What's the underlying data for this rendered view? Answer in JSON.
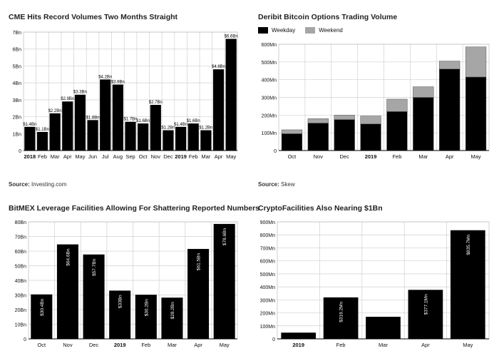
{
  "panels": [
    {
      "title": "CME Hits Record Volumes Two Months Straight",
      "source_label": "Source:",
      "source_value": "Investing.com"
    },
    {
      "title": "Deribit Bitcoin Options Trading Volume",
      "source_label": "Source:",
      "source_value": "Skew",
      "legend": [
        "Weekday",
        "Weekend"
      ]
    },
    {
      "title": "BitMEX Leverage Facilities Allowing For Shattering Reported Numbers"
    },
    {
      "title": "CryptoFacilities Also Nearing $1Bn"
    }
  ],
  "colors": {
    "bar": "#000000",
    "weekend": "#a6a6a6",
    "grid": "#d0d0d0",
    "axis": "#000000"
  },
  "chart_data": [
    {
      "type": "bar",
      "title": "CME Hits Record Volumes Two Months Straight",
      "categories": [
        "2018",
        "Feb",
        "Mar",
        "Apr",
        "May",
        "Jun",
        "Jul",
        "Aug",
        "Sep",
        "Oct",
        "Nov",
        "Dec",
        "2019",
        "Feb",
        "Mar",
        "Apr",
        "May"
      ],
      "bold_categories": [
        "2018",
        "2019"
      ],
      "values": [
        1.4,
        1.1,
        2.2,
        2.9,
        3.3,
        1.8,
        4.2,
        3.9,
        1.7,
        1.6,
        2.7,
        1.2,
        1.4,
        1.6,
        1.2,
        4.8,
        6.6
      ],
      "data_labels": [
        "$1.4Bn",
        "$1.1Bn",
        "$2.2Bn",
        "$2.9Bn",
        "$3.3Bn",
        "$1.8Bn",
        "$4.2Bn",
        "$3.9Bn",
        "$1.7Bn",
        "$1.6Bn",
        "$2.7Bn",
        "$1.2Bn",
        "$1.4Bn",
        "$1.6Bn",
        "$1.2Bn",
        "$4.8Bn",
        "$6.6Bn"
      ],
      "yticks": [
        "0",
        "1Bn",
        "2Bn",
        "3Bn",
        "4Bn",
        "5Bn",
        "6Bn",
        "7Bn"
      ],
      "ylim": [
        0,
        7
      ],
      "grid": true
    },
    {
      "type": "bar",
      "stacked": true,
      "title": "Deribit Bitcoin Options Trading Volume",
      "categories": [
        "Oct",
        "Nov",
        "Dec",
        "2019",
        "Feb",
        "Mar",
        "Apr",
        "May"
      ],
      "bold_categories": [
        "2019"
      ],
      "series": [
        {
          "name": "Weekday",
          "values": [
            95,
            155,
            175,
            150,
            220,
            300,
            460,
            415
          ]
        },
        {
          "name": "Weekend",
          "values": [
            22,
            25,
            25,
            45,
            70,
            60,
            45,
            170
          ]
        }
      ],
      "yticks": [
        "0",
        "100Mn",
        "200Mn",
        "300Mn",
        "400Mn",
        "500Mn",
        "600Mn"
      ],
      "ylim": [
        0,
        600
      ],
      "legend": "top-left",
      "grid": true
    },
    {
      "type": "bar",
      "title": "BitMEX Leverage Facilities Allowing For Shattering Reported Numbers",
      "categories": [
        "Oct",
        "Nov",
        "Dec",
        "2019",
        "Feb",
        "Mar",
        "Apr",
        "May"
      ],
      "bold_categories": [
        "2019"
      ],
      "values": [
        30.4,
        64.6,
        57.7,
        33,
        30.2,
        28.2,
        61.5,
        78.6
      ],
      "data_labels": [
        "$30.4Bn",
        "$64.6Bn",
        "$57.7Bn",
        "$33Bn",
        "$30.2Bn",
        "$28.2Bn",
        "$61.5Bn",
        "$78.6Bn"
      ],
      "yticks": [
        "0",
        "10Bn",
        "20Bn",
        "30Bn",
        "40Bn",
        "50Bn",
        "60Bn",
        "70Bn",
        "80Bn"
      ],
      "ylim": [
        0,
        80
      ],
      "grid": true
    },
    {
      "type": "bar",
      "title": "CryptoFacilities Also Nearing $1Bn",
      "categories": [
        "2019",
        "Feb",
        "Mar",
        "Apr",
        "May"
      ],
      "bold_categories": [
        "2019"
      ],
      "values": [
        48,
        319.2,
        170,
        377.1,
        835.7
      ],
      "data_labels": [
        "",
        "$319.2Mn",
        "",
        "$377.1Mn",
        "$835.7Mn"
      ],
      "yticks": [
        "0",
        "100Mn",
        "200Mn",
        "300Mn",
        "400Mn",
        "500Mn",
        "600Mn",
        "700Mn",
        "800Mn",
        "900Mn"
      ],
      "ylim": [
        0,
        900
      ],
      "grid": true
    }
  ]
}
